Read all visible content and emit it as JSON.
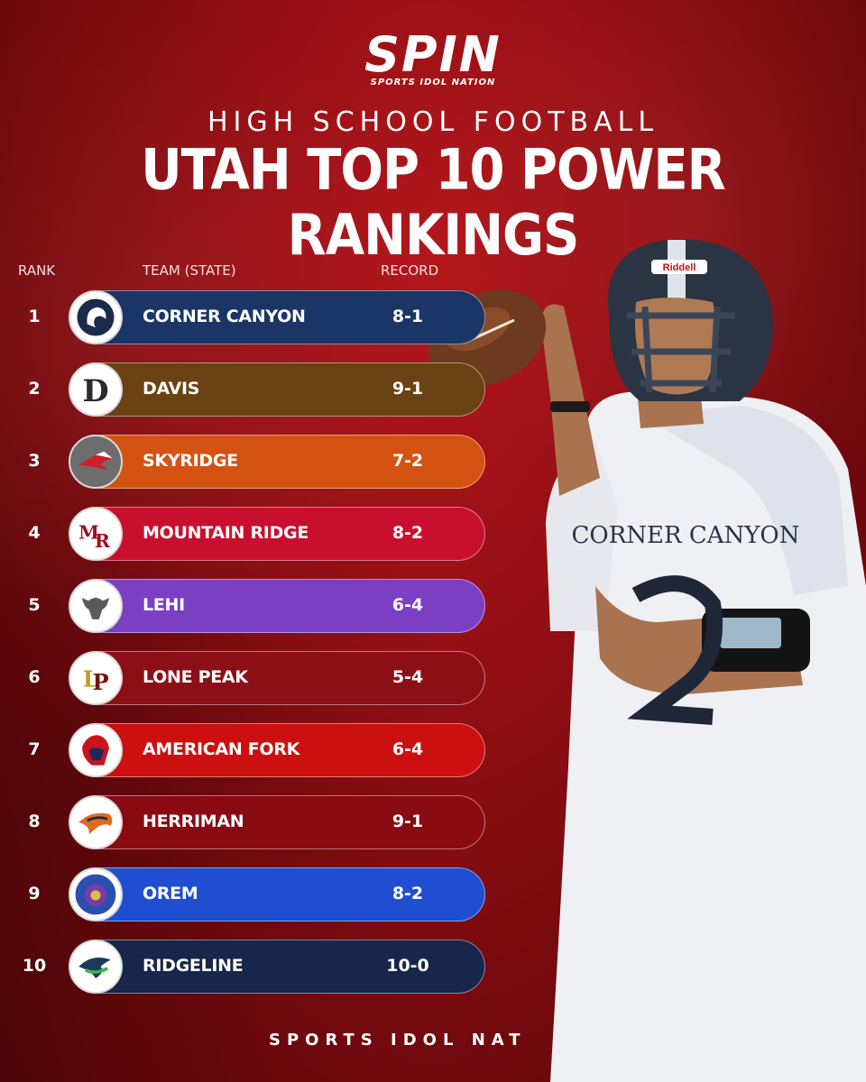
{
  "brand": {
    "logo_text": "SPIN",
    "logo_subtext": "SPORTS IDOL NATION"
  },
  "header": {
    "subtitle": "HIGH SCHOOL FOOTBALL",
    "title": "UTAH TOP 10 POWER RANKINGS"
  },
  "columns": {
    "rank": "RANK",
    "team": "TEAM (STATE)",
    "record": "RECORD"
  },
  "rankings": [
    {
      "rank": "1",
      "team": "CORNER CANYON",
      "record": "8-1",
      "color": "#1b3566"
    },
    {
      "rank": "2",
      "team": "DAVIS",
      "record": "9-1",
      "color": "#6b4214"
    },
    {
      "rank": "3",
      "team": "SKYRIDGE",
      "record": "7-2",
      "color": "#d45313"
    },
    {
      "rank": "4",
      "team": "MOUNTAIN RIDGE",
      "record": "8-2",
      "color": "#c8102e"
    },
    {
      "rank": "5",
      "team": "LEHI",
      "record": "6-4",
      "color": "#7b3fc4"
    },
    {
      "rank": "6",
      "team": "LONE PEAK",
      "record": "5-4",
      "color": "#8c0f18"
    },
    {
      "rank": "7",
      "team": "AMERICAN FORK",
      "record": "6-4",
      "color": "#cc1010"
    },
    {
      "rank": "8",
      "team": "HERRIMAN",
      "record": "9-1",
      "color": "#8a0a12"
    },
    {
      "rank": "9",
      "team": "OREM",
      "record": "8-2",
      "color": "#1f4fd0"
    },
    {
      "rank": "10",
      "team": "RIDGELINE",
      "record": "10-0",
      "color": "#17264a"
    }
  ],
  "player": {
    "jersey_text": "CORNER CANYON",
    "helmet_brand": "Riddell"
  },
  "footer": {
    "text": "SPORTS IDOL NAT"
  }
}
